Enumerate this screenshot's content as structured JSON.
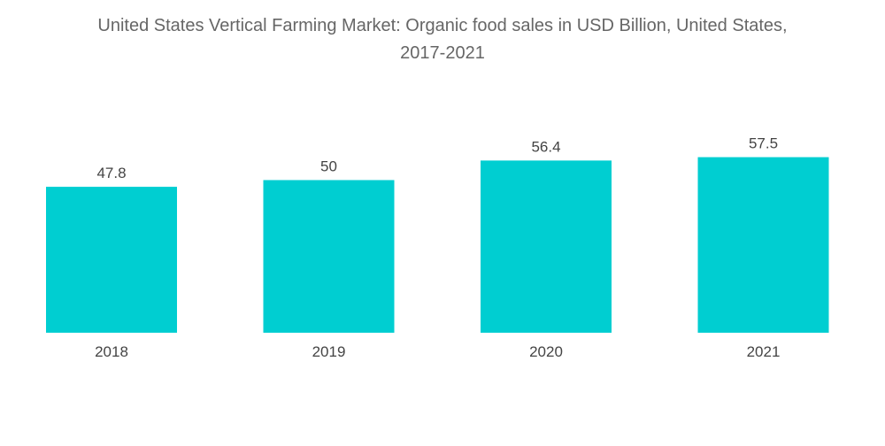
{
  "chart_data": {
    "type": "bar",
    "title_line1": "United States Vertical Farming Market: Organic food sales in USD Billion, United States,",
    "title_line2": "2017-2021",
    "xlabel": "",
    "ylabel": "",
    "categories": [
      "2018",
      "2019",
      "2020",
      "2021"
    ],
    "values": [
      47.8,
      50,
      56.4,
      57.5
    ],
    "value_labels": [
      "47.8",
      "50",
      "56.4",
      "57.5"
    ],
    "bar_color": "#00CED1",
    "grid": false,
    "legend": "none"
  }
}
